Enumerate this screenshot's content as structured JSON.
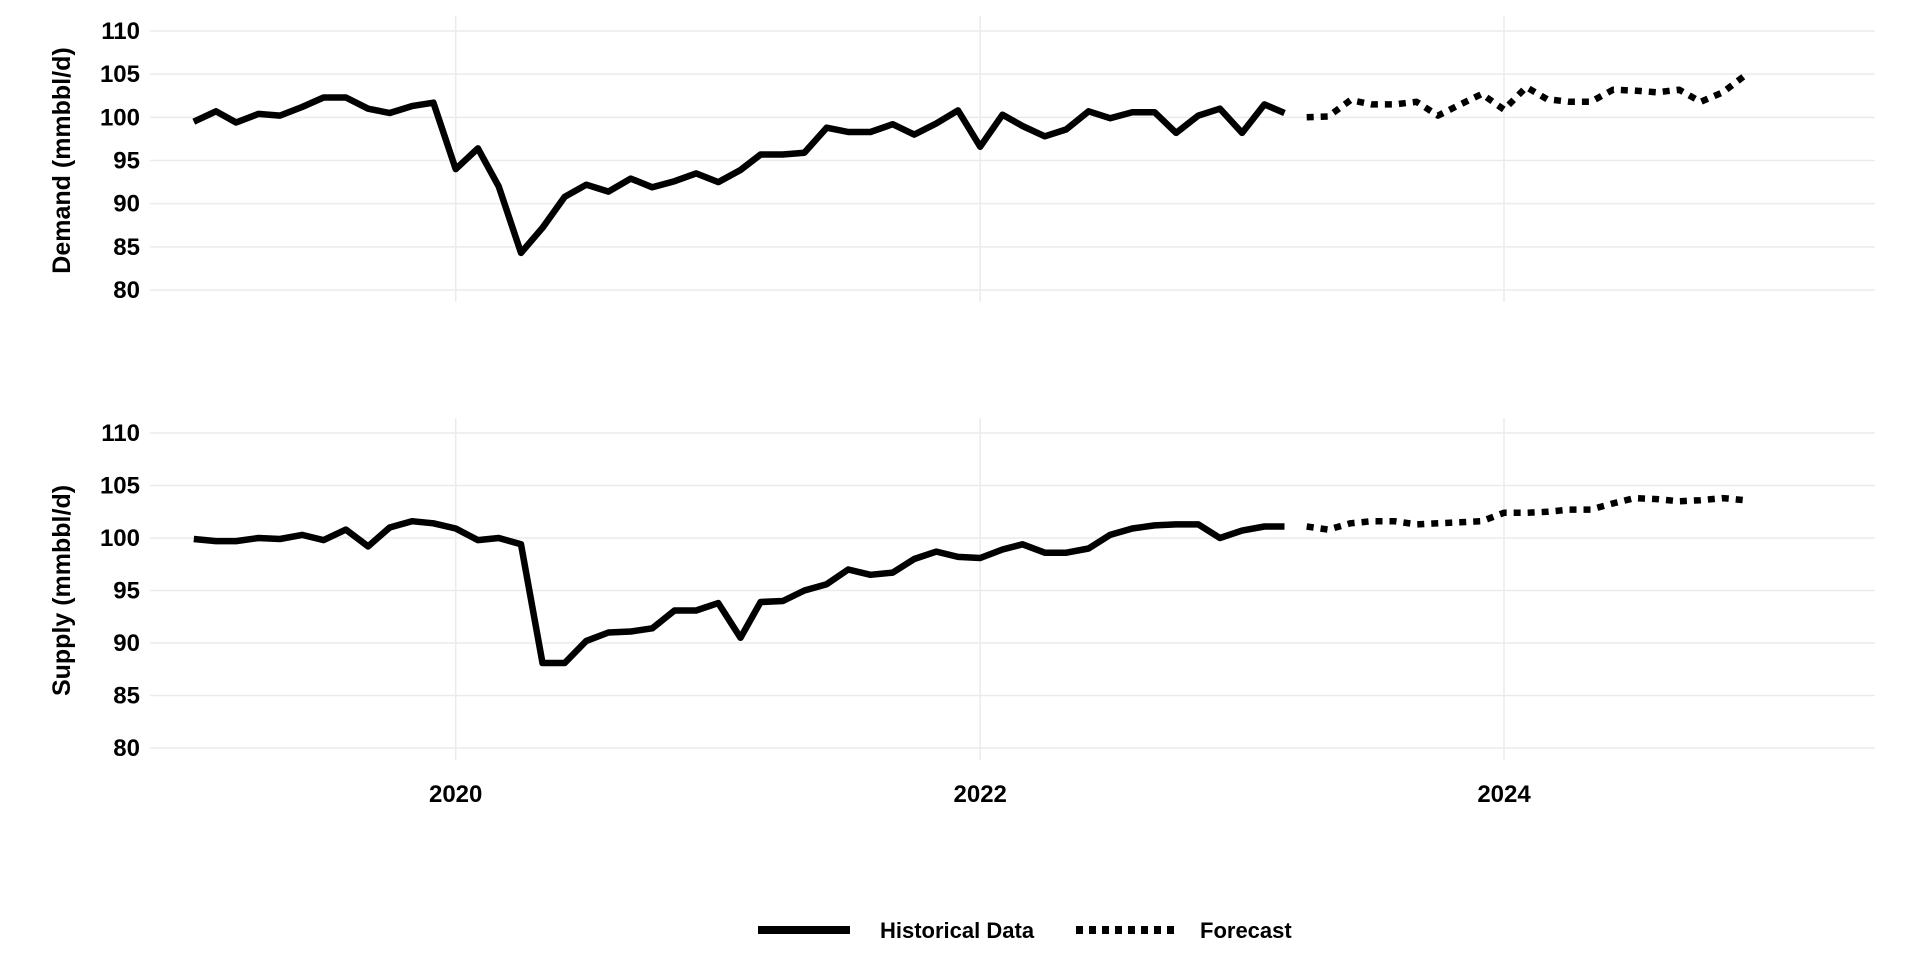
{
  "chart_data": [
    {
      "type": "line",
      "ylabel": "Demand (mmbbl/d)",
      "xlabel": "",
      "xlim": [
        "2018-11-01",
        "2025-06-01"
      ],
      "ylim": [
        80,
        110
      ],
      "yticks": [
        "80",
        "85",
        "90",
        "95",
        "100",
        "105",
        "110"
      ],
      "xticks": [
        "2020",
        "2022",
        "2024"
      ],
      "grid": true,
      "series": [
        {
          "name": "Historical Data",
          "style": "solid",
          "x": [
            "2019-01",
            "2019-02",
            "2019-03",
            "2019-04",
            "2019-05",
            "2019-06",
            "2019-07",
            "2019-08",
            "2019-09",
            "2019-10",
            "2019-11",
            "2019-12",
            "2020-01",
            "2020-02",
            "2020-03",
            "2020-04",
            "2020-05",
            "2020-06",
            "2020-07",
            "2020-08",
            "2020-09",
            "2020-10",
            "2020-11",
            "2020-12",
            "2021-01",
            "2021-02",
            "2021-03",
            "2021-04",
            "2021-05",
            "2021-06",
            "2021-07",
            "2021-08",
            "2021-09",
            "2021-10",
            "2021-11",
            "2021-12",
            "2022-01",
            "2022-02",
            "2022-03",
            "2022-04",
            "2022-05",
            "2022-06",
            "2022-07",
            "2022-08",
            "2022-09",
            "2022-10",
            "2022-11",
            "2022-12",
            "2023-01",
            "2023-02",
            "2023-03",
            "2023-04"
          ],
          "values": [
            99.5,
            100.7,
            99.4,
            100.4,
            100.2,
            101.2,
            102.3,
            102.3,
            101.0,
            100.5,
            101.3,
            101.7,
            94.0,
            96.4,
            92.0,
            84.3,
            87.2,
            90.8,
            92.2,
            91.4,
            92.9,
            91.9,
            92.6,
            93.5,
            92.5,
            93.9,
            95.7,
            95.7,
            95.9,
            98.8,
            98.3,
            98.3,
            99.2,
            98.0,
            99.3,
            100.8,
            96.6,
            100.3,
            99.0,
            97.8,
            98.6,
            100.7,
            99.9,
            100.6,
            100.6,
            98.2,
            100.2,
            101.0,
            98.2,
            101.5,
            100.5,
            null
          ]
        },
        {
          "name": "Forecast",
          "style": "dotted",
          "x": [
            "2023-04",
            "2023-05",
            "2023-06",
            "2023-07",
            "2023-08",
            "2023-09",
            "2023-10",
            "2023-11",
            "2023-12",
            "2024-01",
            "2024-02",
            "2024-03",
            "2024-04",
            "2024-05",
            "2024-06",
            "2024-07",
            "2024-08",
            "2024-09",
            "2024-10",
            "2024-11",
            "2024-12"
          ],
          "values": [
            100.0,
            100.1,
            102.0,
            101.5,
            101.5,
            101.8,
            100.2,
            101.5,
            102.7,
            100.9,
            103.5,
            102.1,
            101.8,
            101.8,
            103.2,
            103.1,
            102.9,
            103.2,
            101.8,
            102.9,
            104.8
          ]
        }
      ]
    },
    {
      "type": "line",
      "ylabel": "Supply (mmbbl/d)",
      "xlabel": "",
      "xlim": [
        "2018-11-01",
        "2025-06-01"
      ],
      "ylim": [
        80,
        110
      ],
      "yticks": [
        "80",
        "85",
        "90",
        "95",
        "100",
        "105",
        "110"
      ],
      "xticks": [
        "2020",
        "2022",
        "2024"
      ],
      "grid": true,
      "series": [
        {
          "name": "Historical Data",
          "style": "solid",
          "x": [
            "2019-01",
            "2019-02",
            "2019-03",
            "2019-04",
            "2019-05",
            "2019-06",
            "2019-07",
            "2019-08",
            "2019-09",
            "2019-10",
            "2019-11",
            "2019-12",
            "2020-01",
            "2020-02",
            "2020-03",
            "2020-04",
            "2020-05",
            "2020-06",
            "2020-07",
            "2020-08",
            "2020-09",
            "2020-10",
            "2020-11",
            "2020-12",
            "2021-01",
            "2021-02",
            "2021-03",
            "2021-04",
            "2021-05",
            "2021-06",
            "2021-07",
            "2021-08",
            "2021-09",
            "2021-10",
            "2021-11",
            "2021-12",
            "2022-01",
            "2022-02",
            "2022-03",
            "2022-04",
            "2022-05",
            "2022-06",
            "2022-07",
            "2022-08",
            "2022-09",
            "2022-10",
            "2022-11",
            "2022-12",
            "2023-01",
            "2023-02",
            "2023-03",
            "2023-04"
          ],
          "values": [
            99.9,
            99.7,
            99.7,
            100.0,
            99.9,
            100.3,
            99.8,
            100.8,
            99.2,
            101.0,
            101.6,
            101.4,
            100.9,
            99.8,
            100.0,
            99.4,
            88.1,
            88.1,
            90.2,
            91.0,
            91.1,
            91.4,
            93.1,
            93.1,
            93.8,
            90.5,
            93.9,
            94.0,
            95.0,
            95.6,
            97.0,
            96.5,
            96.7,
            98.0,
            98.7,
            98.2,
            98.1,
            98.9,
            99.4,
            98.6,
            98.6,
            99.0,
            100.3,
            100.9,
            101.2,
            101.3,
            101.3,
            100.0,
            100.7,
            101.1,
            101.1,
            null
          ]
        },
        {
          "name": "Forecast",
          "style": "dotted",
          "x": [
            "2023-04",
            "2023-05",
            "2023-06",
            "2023-07",
            "2023-08",
            "2023-09",
            "2023-10",
            "2023-11",
            "2023-12",
            "2024-01",
            "2024-02",
            "2024-03",
            "2024-04",
            "2024-05",
            "2024-06",
            "2024-07",
            "2024-08",
            "2024-09",
            "2024-10",
            "2024-11",
            "2024-12"
          ],
          "values": [
            101.1,
            100.8,
            101.4,
            101.6,
            101.6,
            101.3,
            101.4,
            101.5,
            101.6,
            102.4,
            102.4,
            102.5,
            102.7,
            102.7,
            103.3,
            103.8,
            103.7,
            103.5,
            103.6,
            103.8,
            103.6
          ]
        }
      ]
    }
  ],
  "legend": {
    "position": "bottom",
    "items": [
      {
        "label": "Historical Data",
        "style": "solid"
      },
      {
        "label": "Forecast",
        "style": "dotted"
      }
    ]
  },
  "colors": {
    "line": "#000000",
    "grid": "#ebebeb",
    "background": "#ffffff"
  }
}
